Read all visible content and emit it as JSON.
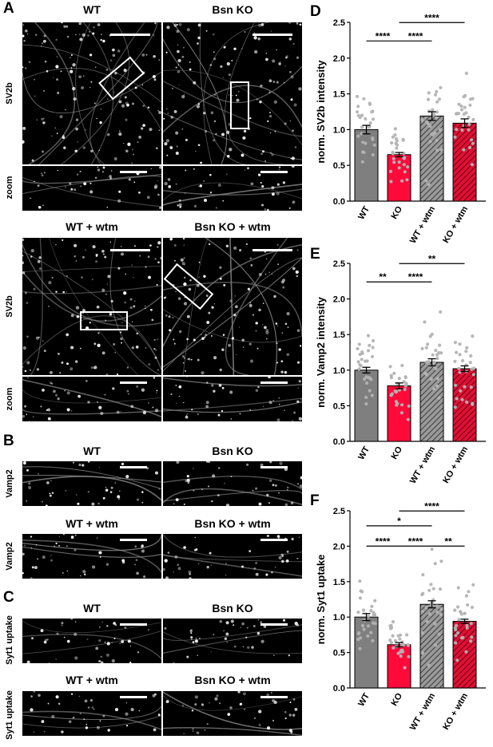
{
  "figure": {
    "panels": {
      "A": {
        "letter": "A",
        "top_titles": [
          "WT",
          "Bsn KO"
        ],
        "bottom_titles": [
          "WT + wtm",
          "Bsn KO + wtm"
        ],
        "row_labels": [
          "SV2b",
          "zoom",
          "SV2b",
          "zoom"
        ]
      },
      "B": {
        "letter": "B",
        "top_titles": [
          "WT",
          "Bsn KO"
        ],
        "bottom_titles": [
          "WT + wtm",
          "Bsn KO + wtm"
        ],
        "row_labels": [
          "Vamp2",
          "Vamp2"
        ]
      },
      "C": {
        "letter": "C",
        "top_titles": [
          "WT",
          "Bsn KO"
        ],
        "bottom_titles": [
          "WT + wtm",
          "Bsn KO + wtm"
        ],
        "row_labels": [
          "Syt1 uptake",
          "Syt1 uptake"
        ]
      }
    }
  },
  "colors": {
    "wt": "#7f7f7f",
    "ko": "#ff0a3a",
    "wt_wtm": "#7f7f7f",
    "ko_wtm": "#c0102b",
    "dots": "#b3b3b3"
  },
  "chart_data": [
    {
      "panel": "D",
      "type": "bar",
      "categories": [
        "WT",
        "KO",
        "WT + wtm",
        "KO + wtm"
      ],
      "values": [
        1.0,
        0.65,
        1.19,
        1.09
      ],
      "sem": [
        0.06,
        0.03,
        0.06,
        0.06
      ],
      "ylabel": "norm. SV2b intensity",
      "ylim": [
        0,
        2.5
      ],
      "yticks": [
        "0.0",
        "0.5",
        "1.0",
        "1.5",
        "2.0",
        "2.5"
      ],
      "significance": [
        {
          "from": 0,
          "to": 1,
          "label": "****"
        },
        {
          "from": 1,
          "to": 2,
          "label": "****"
        },
        {
          "from": 1,
          "to": 3,
          "label": "****"
        }
      ]
    },
    {
      "panel": "E",
      "type": "bar",
      "categories": [
        "WT",
        "KO",
        "WT + wtm",
        "KO + wtm"
      ],
      "values": [
        1.0,
        0.78,
        1.11,
        1.02
      ],
      "sem": [
        0.04,
        0.04,
        0.05,
        0.04
      ],
      "ylabel": "norm. Vamp2 intensity",
      "ylim": [
        0,
        2.5
      ],
      "yticks": [
        "0.0",
        "0.5",
        "1.0",
        "1.5",
        "2.0",
        "2.5"
      ],
      "significance": [
        {
          "from": 0,
          "to": 1,
          "label": "**"
        },
        {
          "from": 1,
          "to": 2,
          "label": "****"
        },
        {
          "from": 1,
          "to": 3,
          "label": "**"
        }
      ]
    },
    {
      "panel": "F",
      "type": "bar",
      "categories": [
        "WT",
        "KO",
        "WT + wtm",
        "KO + wtm"
      ],
      "values": [
        1.0,
        0.61,
        1.18,
        0.94
      ],
      "sem": [
        0.05,
        0.03,
        0.05,
        0.03
      ],
      "ylabel": "norm. Syt1 uptake",
      "ylim": [
        0,
        2.5
      ],
      "yticks": [
        "0.0",
        "0.5",
        "1.0",
        "1.5",
        "2.0",
        "2.5"
      ],
      "significance": [
        {
          "from": 0,
          "to": 1,
          "label": "****"
        },
        {
          "from": 1,
          "to": 2,
          "label": "****"
        },
        {
          "from": 2,
          "to": 3,
          "label": "**"
        },
        {
          "from": 0,
          "to": 2,
          "label": "*"
        },
        {
          "from": 1,
          "to": 3,
          "label": "****"
        }
      ]
    }
  ]
}
